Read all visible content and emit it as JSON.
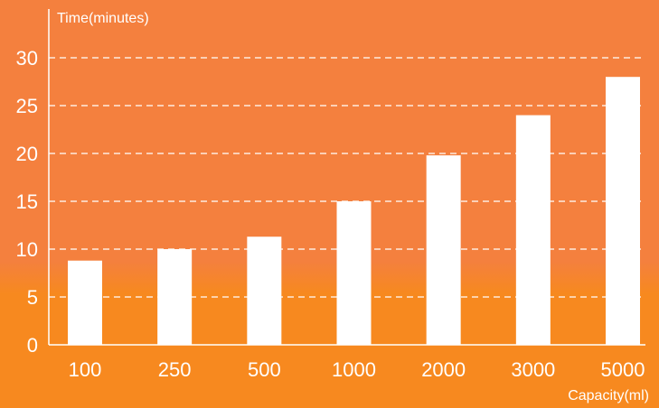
{
  "colors": {
    "background_top": "#f4803e",
    "background_bottom": "#f7891f",
    "bars": "#ffffff",
    "axis": "#ffffff",
    "grid": "#ffffff"
  },
  "chart_data": {
    "type": "bar",
    "title": "",
    "xlabel": "Capacity(ml)",
    "ylabel": "Time(minutes)",
    "categories": [
      "100",
      "250",
      "500",
      "1000",
      "2000",
      "3000",
      "5000"
    ],
    "values": [
      8.8,
      10,
      11.3,
      15,
      19.8,
      24,
      28
    ],
    "ylim": [
      0,
      30
    ],
    "yticks": [
      "0",
      "5",
      "10",
      "15",
      "20",
      "25",
      "30"
    ],
    "grid": true,
    "grid_style": "dashed horizontal",
    "legend": "none"
  }
}
